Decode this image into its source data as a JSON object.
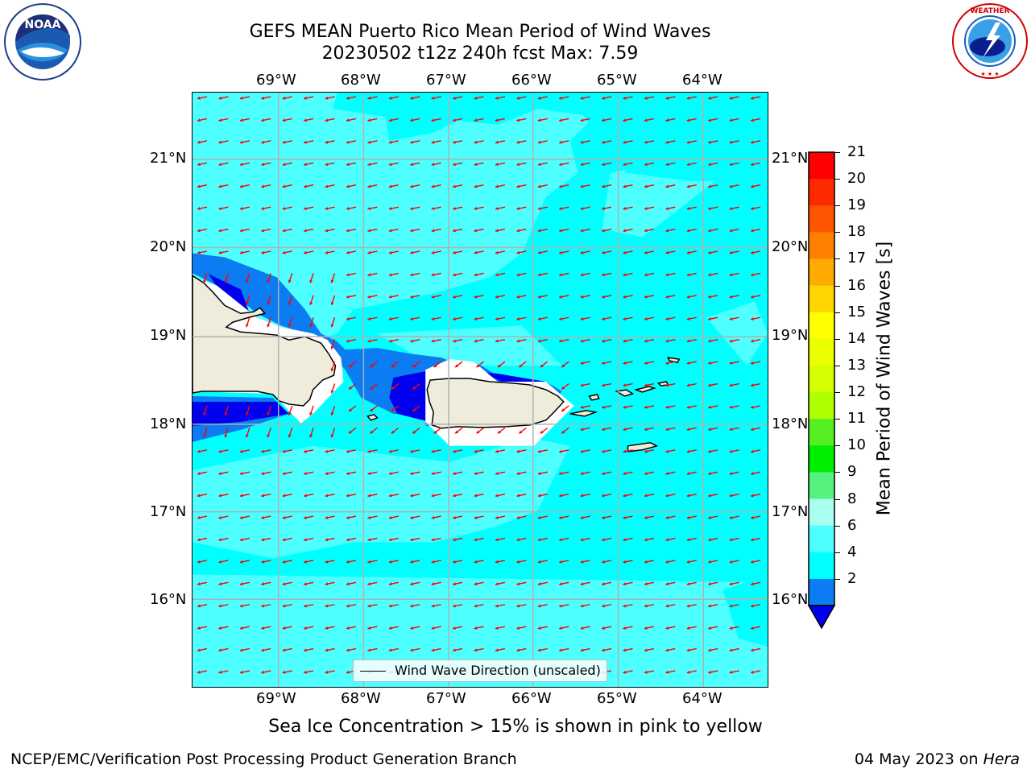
{
  "header": {
    "title": "GEFS MEAN Puerto Rico Mean Period of Wind Waves",
    "subtitle": "20230502 t12z 240h fcst   Max: 7.59"
  },
  "logos": {
    "left": "noaa-logo",
    "right": "nws-logo"
  },
  "map": {
    "lon_labels": [
      "69°W",
      "68°W",
      "67°W",
      "66°W",
      "65°W",
      "64°W"
    ],
    "lat_labels_left": [
      "21°N",
      "20°N",
      "19°N",
      "18°N",
      "17°N",
      "16°N"
    ],
    "lat_labels_right": [
      "21°N",
      "20°N",
      "19°N",
      "18°N",
      "17°N",
      "16°N"
    ],
    "legend": "Wind Wave Direction (unscaled)",
    "colors": {
      "ocean_light": "#00ffff",
      "ocean_mid": "#4dffff",
      "ocean_blue": "#0b7cf2",
      "ocean_dark": "#0000ee",
      "land": "#efecdc",
      "arrow": "#ff0000",
      "grid": "#b0b0b0"
    }
  },
  "colorbar": {
    "label": "Mean Period of Wind Waves [s]",
    "ticks": [
      "21",
      "20",
      "19",
      "18",
      "17",
      "16",
      "15",
      "14",
      "13",
      "12",
      "11",
      "10",
      "9",
      "8",
      "6",
      "4",
      "2"
    ],
    "colors": [
      "#ff0000",
      "#ff2a00",
      "#ff5500",
      "#ff8000",
      "#ffaa00",
      "#ffd400",
      "#ffff00",
      "#eaff00",
      "#d4ff00",
      "#b0ff00",
      "#55ee22",
      "#00ee00",
      "#55f280",
      "#a8fff0",
      "#4dffff",
      "#00ffff",
      "#0b7cf2"
    ],
    "under_color": "#0000ee"
  },
  "footer": {
    "note": "Sea Ice Concentration > 15% is shown in pink to yellow",
    "left": "NCEP/EMC/Verification Post Processing Product Generation Branch",
    "right_date": "04 May 2023 on",
    "right_machine": "Hera"
  }
}
